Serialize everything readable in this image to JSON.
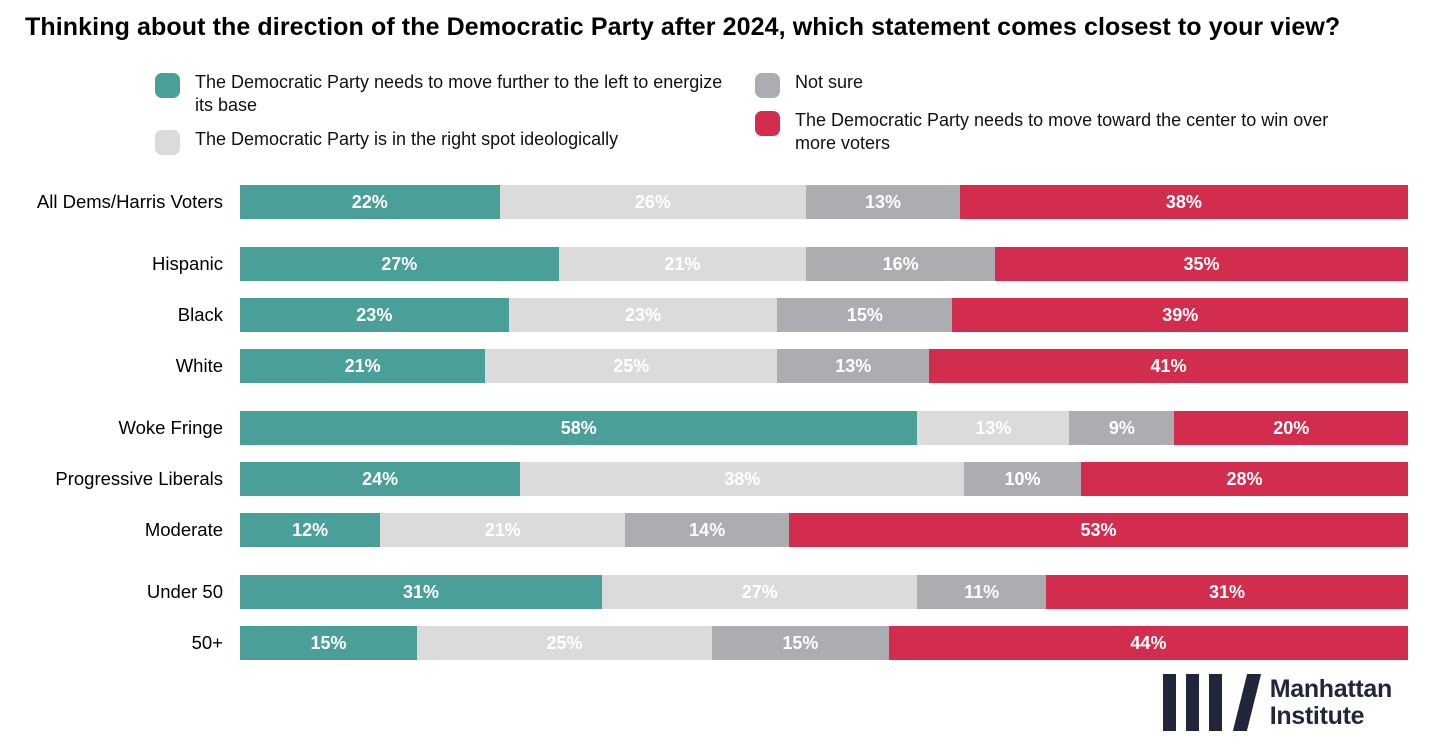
{
  "title": "Thinking about the direction of the Democratic Party after 2024, which statement comes closest to your view?",
  "legend": [
    {
      "label": "The Democratic Party needs to move further to the left to energize its base",
      "color": "#4AA099"
    },
    {
      "label": "The Democratic Party is in the right spot ideologically",
      "color": "#DBDBDB"
    },
    {
      "label": "Not sure",
      "color": "#ABADB0"
    },
    {
      "label": "The Democratic Party needs to move toward the center to win over more voters",
      "color": "#D22D4E"
    }
  ],
  "chart_data": {
    "type": "bar",
    "stacked": true,
    "orientation": "horizontal",
    "unit": "%",
    "value_suffix": "%",
    "grid": false,
    "legend_position": "top",
    "categories": [
      "All Dems/Harris Voters",
      "Hispanic",
      "Black",
      "White",
      "Woke Fringe",
      "Progressive Liberals",
      "Moderate",
      "Under 50",
      "50+"
    ],
    "groups": [
      [
        0
      ],
      [
        1,
        2,
        3
      ],
      [
        4,
        5,
        6
      ],
      [
        7,
        8
      ]
    ],
    "series": [
      {
        "name": "The Democratic Party needs to move further to the left to energize its base",
        "key": "move-left",
        "color": "#4AA099",
        "values": [
          22,
          27,
          23,
          21,
          58,
          24,
          12,
          31,
          15
        ]
      },
      {
        "name": "The Democratic Party is in the right spot ideologically",
        "key": "right-spot",
        "color": "#DBDBDB",
        "values": [
          26,
          21,
          23,
          25,
          13,
          38,
          21,
          27,
          25
        ]
      },
      {
        "name": "Not sure",
        "key": "not-sure",
        "color": "#ABADB0",
        "values": [
          13,
          16,
          15,
          13,
          9,
          10,
          14,
          11,
          15
        ]
      },
      {
        "name": "The Democratic Party needs to move toward the center to win over more voters",
        "key": "move-center",
        "color": "#D22D4E",
        "values": [
          38,
          35,
          39,
          41,
          20,
          28,
          53,
          31,
          44
        ]
      }
    ]
  },
  "footer": {
    "logo_line1": "Manhattan",
    "logo_line2": "Institute",
    "logo_color": "#22263A"
  }
}
